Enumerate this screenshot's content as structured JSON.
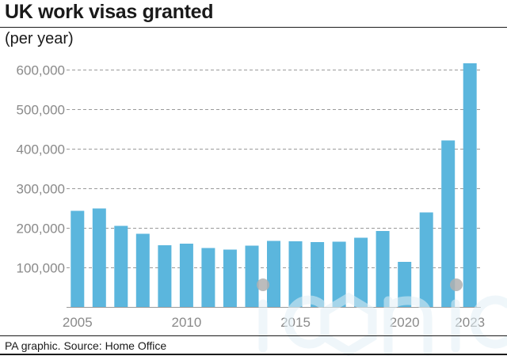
{
  "header": {
    "title": "UK work visas granted",
    "subtitle": "(per year)"
  },
  "footer": {
    "source": "PA graphic. Source: Home Office"
  },
  "watermark": {
    "text": "iconic"
  },
  "colors": {
    "bar": "#5bb6dd",
    "grid": "#9a9a9a",
    "tick_label": "#8a8a8a",
    "text": "#1a1a1a"
  },
  "chart_data": {
    "type": "bar",
    "categories": [
      "2005",
      "2006",
      "2007",
      "2008",
      "2009",
      "2010",
      "2011",
      "2012",
      "2013",
      "2014",
      "2015",
      "2016",
      "2017",
      "2018",
      "2019",
      "2020",
      "2021",
      "2022",
      "2023"
    ],
    "values": [
      243000,
      249000,
      205000,
      185000,
      156000,
      160000,
      149000,
      145000,
      155000,
      167000,
      166000,
      164000,
      165000,
      175000,
      192000,
      114000,
      239000,
      421000,
      616000
    ],
    "x_tick_labels": [
      "2005",
      "2010",
      "2015",
      "2020",
      "2023"
    ],
    "y_ticks": [
      100000,
      200000,
      300000,
      400000,
      500000,
      600000
    ],
    "y_tick_labels": [
      "100,000",
      "200,000",
      "300,000",
      "400,000",
      "500,000",
      "600,000"
    ],
    "ylim": [
      0,
      600000
    ],
    "grid": true,
    "xlabel": "",
    "ylabel": "",
    "legend": "none"
  }
}
